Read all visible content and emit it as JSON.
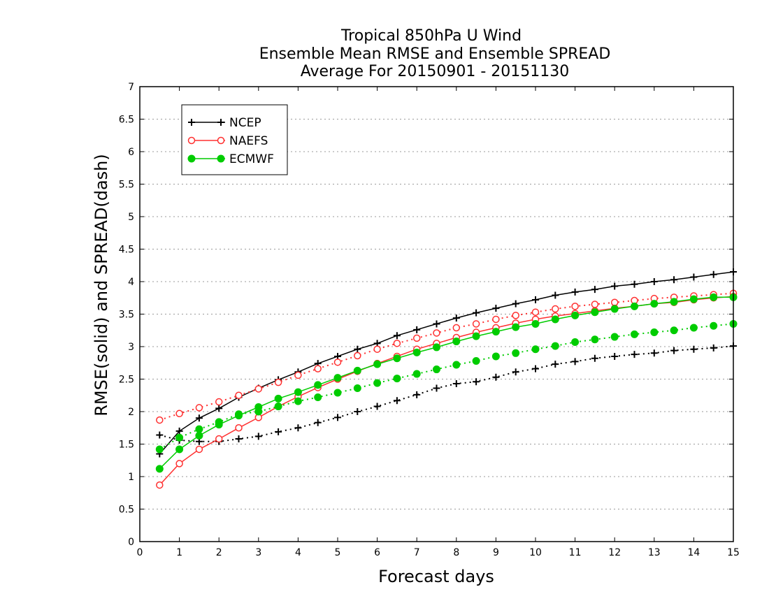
{
  "chart_data": {
    "type": "line",
    "title_lines": [
      "Tropical 850hPa U Wind",
      "Ensemble Mean RMSE and Ensemble SPREAD",
      "Average For 20150901 - 20151130"
    ],
    "xlabel": "Forecast days",
    "ylabel": "RMSE(solid) and SPREAD(dash)",
    "xlim": [
      0,
      15
    ],
    "ylim": [
      0,
      7
    ],
    "x_ticks": [
      "0",
      "1",
      "2",
      "3",
      "4",
      "5",
      "6",
      "7",
      "8",
      "9",
      "10",
      "11",
      "12",
      "13",
      "14",
      "15"
    ],
    "y_ticks": [
      "0",
      "0.5",
      "1",
      "1.5",
      "2",
      "2.5",
      "3",
      "3.5",
      "4",
      "4.5",
      "5",
      "5.5",
      "6",
      "6.5",
      "7"
    ],
    "grid": "horizontal dotted",
    "legend_position": "top-left",
    "x": [
      0.5,
      1,
      1.5,
      2,
      2.5,
      3,
      3.5,
      4,
      4.5,
      5,
      5.5,
      6,
      6.5,
      7,
      7.5,
      8,
      8.5,
      9,
      9.5,
      10,
      10.5,
      11,
      11.5,
      12,
      12.5,
      13,
      13.5,
      14,
      14.5,
      15
    ],
    "series": [
      {
        "name": "NCEP",
        "color": "#000000",
        "marker": "plus",
        "rmse": [
          1.35,
          1.7,
          1.9,
          2.05,
          2.22,
          2.36,
          2.49,
          2.61,
          2.74,
          2.85,
          2.96,
          3.05,
          3.17,
          3.26,
          3.35,
          3.44,
          3.52,
          3.59,
          3.66,
          3.72,
          3.79,
          3.84,
          3.88,
          3.93,
          3.96,
          4.0,
          4.03,
          4.07,
          4.11,
          4.15
        ],
        "spread": [
          1.64,
          1.56,
          1.54,
          1.54,
          1.58,
          1.62,
          1.69,
          1.75,
          1.83,
          1.91,
          2.0,
          2.08,
          2.17,
          2.26,
          2.36,
          2.43,
          2.46,
          2.53,
          2.61,
          2.66,
          2.73,
          2.77,
          2.82,
          2.85,
          2.88,
          2.9,
          2.94,
          2.96,
          2.98,
          3.01
        ]
      },
      {
        "name": "NAEFS",
        "color": "#ff3030",
        "marker": "open-circle",
        "rmse": [
          0.87,
          1.2,
          1.42,
          1.58,
          1.75,
          1.91,
          2.08,
          2.23,
          2.37,
          2.5,
          2.62,
          2.74,
          2.85,
          2.96,
          3.05,
          3.14,
          3.22,
          3.29,
          3.36,
          3.42,
          3.47,
          3.51,
          3.55,
          3.59,
          3.62,
          3.66,
          3.68,
          3.72,
          3.75,
          3.77
        ],
        "spread": [
          1.87,
          1.97,
          2.06,
          2.15,
          2.25,
          2.35,
          2.45,
          2.56,
          2.66,
          2.76,
          2.86,
          2.96,
          3.05,
          3.13,
          3.21,
          3.29,
          3.35,
          3.42,
          3.48,
          3.53,
          3.58,
          3.62,
          3.65,
          3.68,
          3.71,
          3.74,
          3.76,
          3.78,
          3.8,
          3.82
        ]
      },
      {
        "name": "ECMWF",
        "color": "#00cc00",
        "marker": "filled-circle",
        "rmse": [
          1.12,
          1.42,
          1.63,
          1.8,
          1.94,
          2.07,
          2.2,
          2.3,
          2.41,
          2.52,
          2.63,
          2.73,
          2.82,
          2.91,
          2.99,
          3.08,
          3.16,
          3.23,
          3.3,
          3.35,
          3.42,
          3.48,
          3.53,
          3.58,
          3.62,
          3.66,
          3.69,
          3.73,
          3.76,
          3.76
        ],
        "spread": [
          1.42,
          1.6,
          1.73,
          1.84,
          1.96,
          2.0,
          2.08,
          2.16,
          2.22,
          2.29,
          2.36,
          2.44,
          2.51,
          2.58,
          2.65,
          2.72,
          2.78,
          2.85,
          2.9,
          2.96,
          3.01,
          3.07,
          3.11,
          3.15,
          3.19,
          3.22,
          3.25,
          3.29,
          3.32,
          3.35
        ]
      }
    ]
  }
}
